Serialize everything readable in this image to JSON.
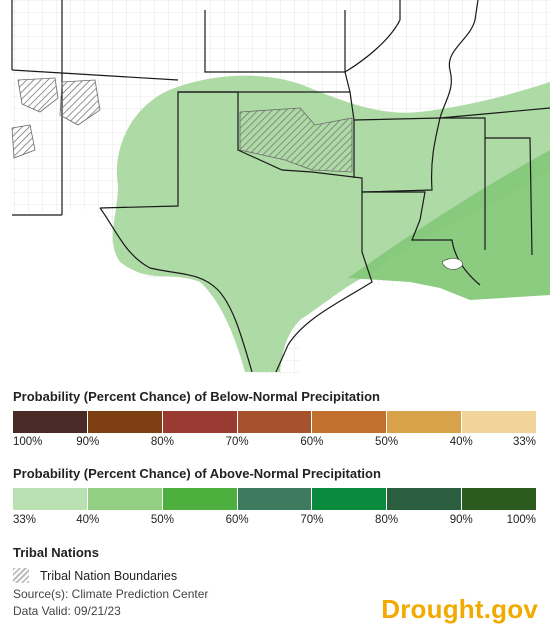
{
  "map": {
    "region": "South Central United States",
    "outlook": {
      "category": "above-normal",
      "probability_levels_shown": [
        "33-40%",
        "40-50%"
      ]
    },
    "colors": {
      "land": "#ffffff",
      "state_border": "#1a1a1a",
      "county_border": "#cfcfcf",
      "above_33_40": "#a9d8a0",
      "above_40_50": "#86c97a",
      "tribal_hatch": "#8a8a8a"
    }
  },
  "legend": {
    "below": {
      "title": "Probability (Percent Chance) of Below-Normal Precipitation",
      "colors": [
        "#4a2a26",
        "#7e3f12",
        "#9a3b33",
        "#a6522c",
        "#c2702d",
        "#d8a24a",
        "#f0d49a"
      ],
      "ticks": [
        "100%",
        "90%",
        "80%",
        "70%",
        "60%",
        "50%",
        "40%",
        "33%"
      ]
    },
    "above": {
      "title": "Probability (Percent Chance) of Above-Normal Precipitation",
      "colors": [
        "#b9e0b0",
        "#93cf82",
        "#4caf3e",
        "#3d7a5e",
        "#0a8a3c",
        "#2b5e3e",
        "#2a5a1e"
      ],
      "ticks": [
        "33%",
        "40%",
        "50%",
        "60%",
        "70%",
        "80%",
        "90%",
        "100%"
      ]
    },
    "tribal": {
      "title": "Tribal Nations",
      "item_label": "Tribal Nation Boundaries"
    }
  },
  "footer": {
    "source": "Source(s): Climate Prediction Center",
    "valid": "Data Valid: 09/21/23",
    "brand": "Drought.gov"
  }
}
